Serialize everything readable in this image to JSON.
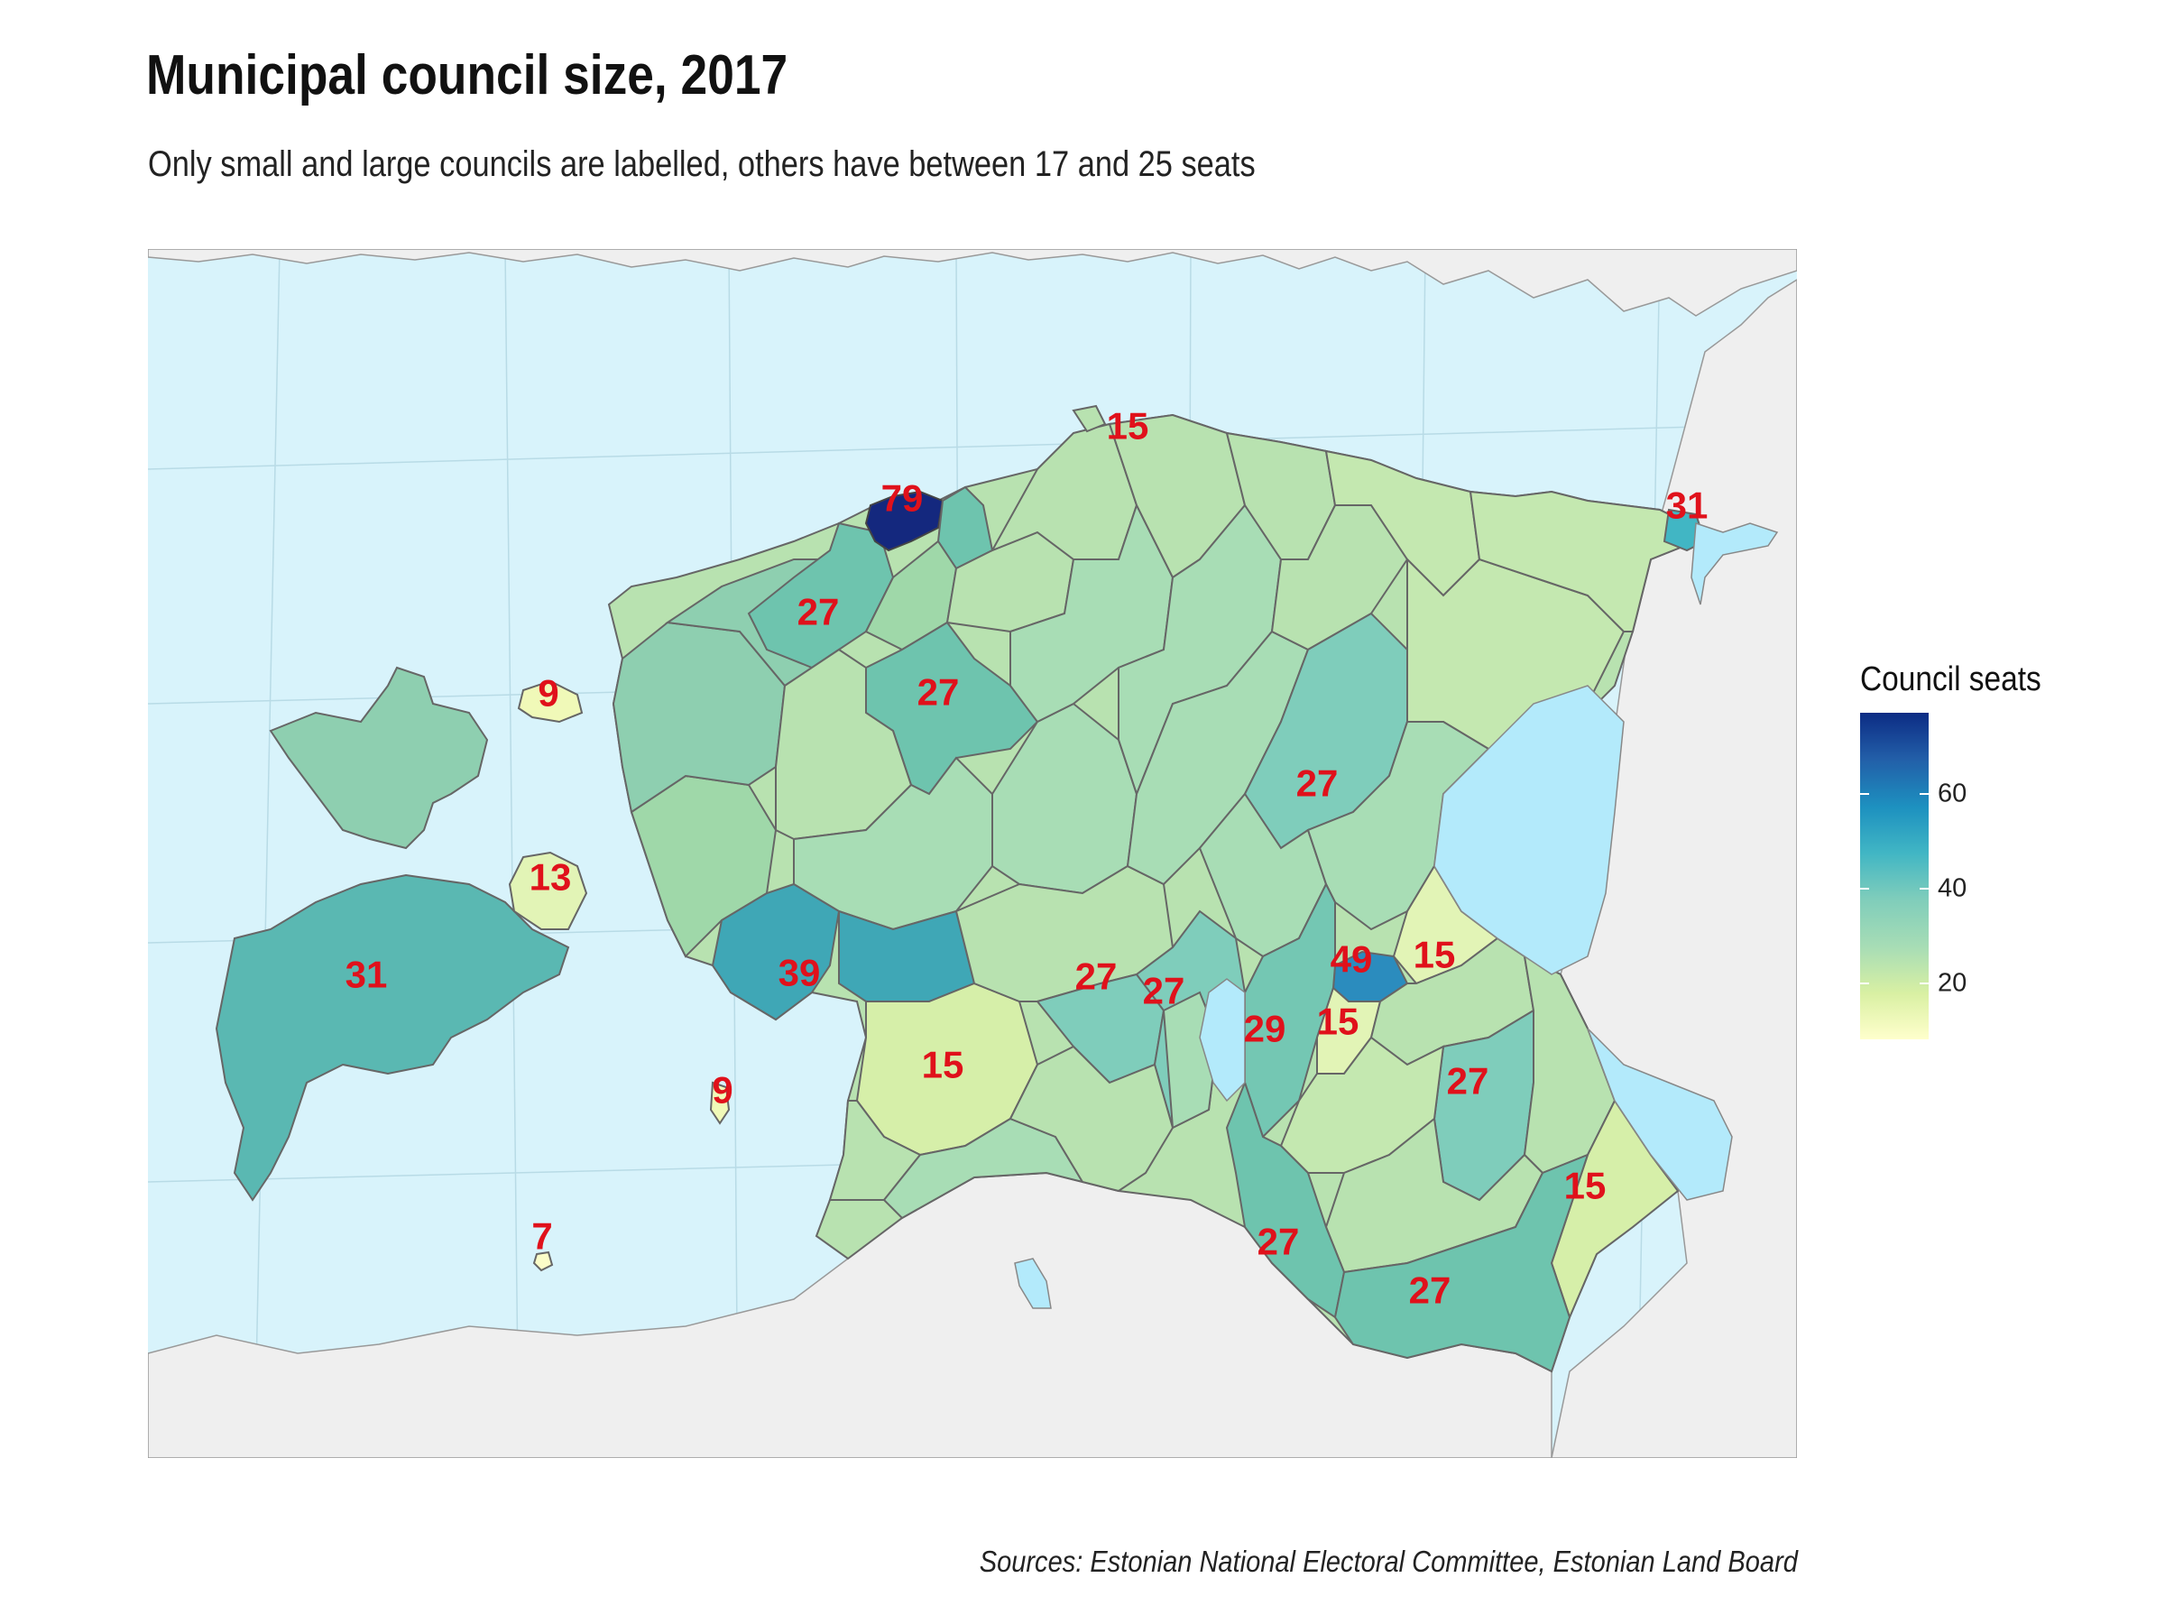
{
  "title": "Municipal council size, 2017",
  "subtitle": "Only small and large councils are labelled, others have between 17 and 25 seats",
  "caption": "Sources: Estonian National Electoral Committee, Estonian Land Board",
  "legend": {
    "title": "Council seats",
    "ticks": [
      "60",
      "40",
      "20"
    ],
    "range": [
      7,
      79
    ],
    "colors": [
      "#ffffcc",
      "#d9f0a3",
      "#a8ddb5",
      "#7fcdbb",
      "#41b6c4",
      "#1d91c0",
      "#225ea8",
      "#0c2c84"
    ]
  },
  "colors": {
    "sea": "#d8f3fb",
    "lake": "#b3eafb",
    "neighbor_land": "#efefef",
    "border": "#666666",
    "label": "#e0111b"
  },
  "labels": [
    "15",
    "79",
    "31",
    "27",
    "27",
    "9",
    "27",
    "13",
    "31",
    "39",
    "49",
    "15",
    "27",
    "27",
    "29",
    "15",
    "15",
    "9",
    "27",
    "15",
    "7",
    "27",
    "27"
  ]
}
